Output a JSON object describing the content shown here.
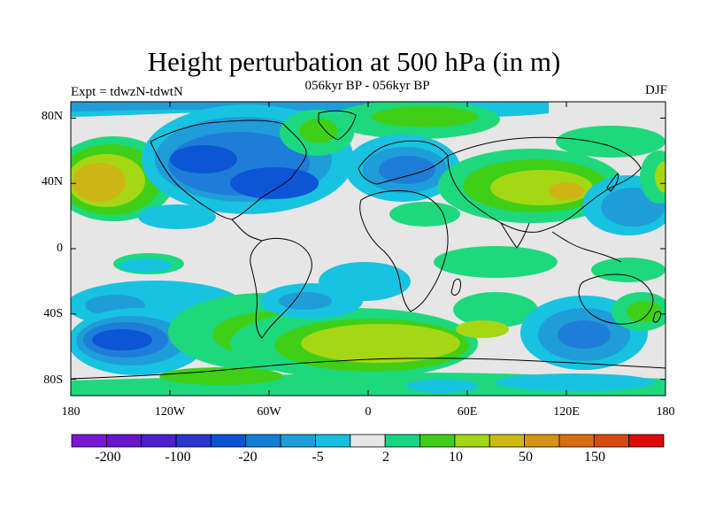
{
  "figure": {
    "title": "Height perturbation at 500 hPa (in m)",
    "subtitle": "056kyr BP - 056kyr BP",
    "experiment": "Expt = tdwzN-tdwtN",
    "season": "DJF"
  },
  "axes": {
    "lat_labels": [
      "80N",
      "40N",
      "0",
      "40S",
      "80S"
    ],
    "lat_values": [
      80,
      40,
      0,
      -40,
      -80
    ],
    "lon_labels": [
      "180",
      "120W",
      "60W",
      "0",
      "60E",
      "120E",
      "180"
    ],
    "lon_values": [
      -180,
      -120,
      -60,
      0,
      60,
      120,
      180
    ]
  },
  "colorbar": {
    "labels": [
      "-200",
      "-100",
      "-20",
      "-5",
      "2",
      "10",
      "50",
      "150"
    ],
    "colors": [
      "#7a16d8",
      "#6614d0",
      "#4a1ed2",
      "#2a34cf",
      "#0a52d6",
      "#137ed8",
      "#1aa0d8",
      "#13c0e0",
      "#e6e6e6",
      "#13d684",
      "#3fcf17",
      "#a2d713",
      "#cdb913",
      "#d79313",
      "#d96b13",
      "#db4713",
      "#e00a0a"
    ]
  },
  "map_colors": {
    "ocean_background": "#e6e6e6",
    "pos_weak": "#1ed87e",
    "pos_mid": "#3fcf17",
    "pos_strong": "#a6d715",
    "pos_peak": "#cdb516",
    "neg_weak": "#17c3e0",
    "neg_mid": "#1f9dd8",
    "neg_strong": "#1e7dd8",
    "neg_peak": "#0b55d6",
    "coastline": "#000000"
  }
}
